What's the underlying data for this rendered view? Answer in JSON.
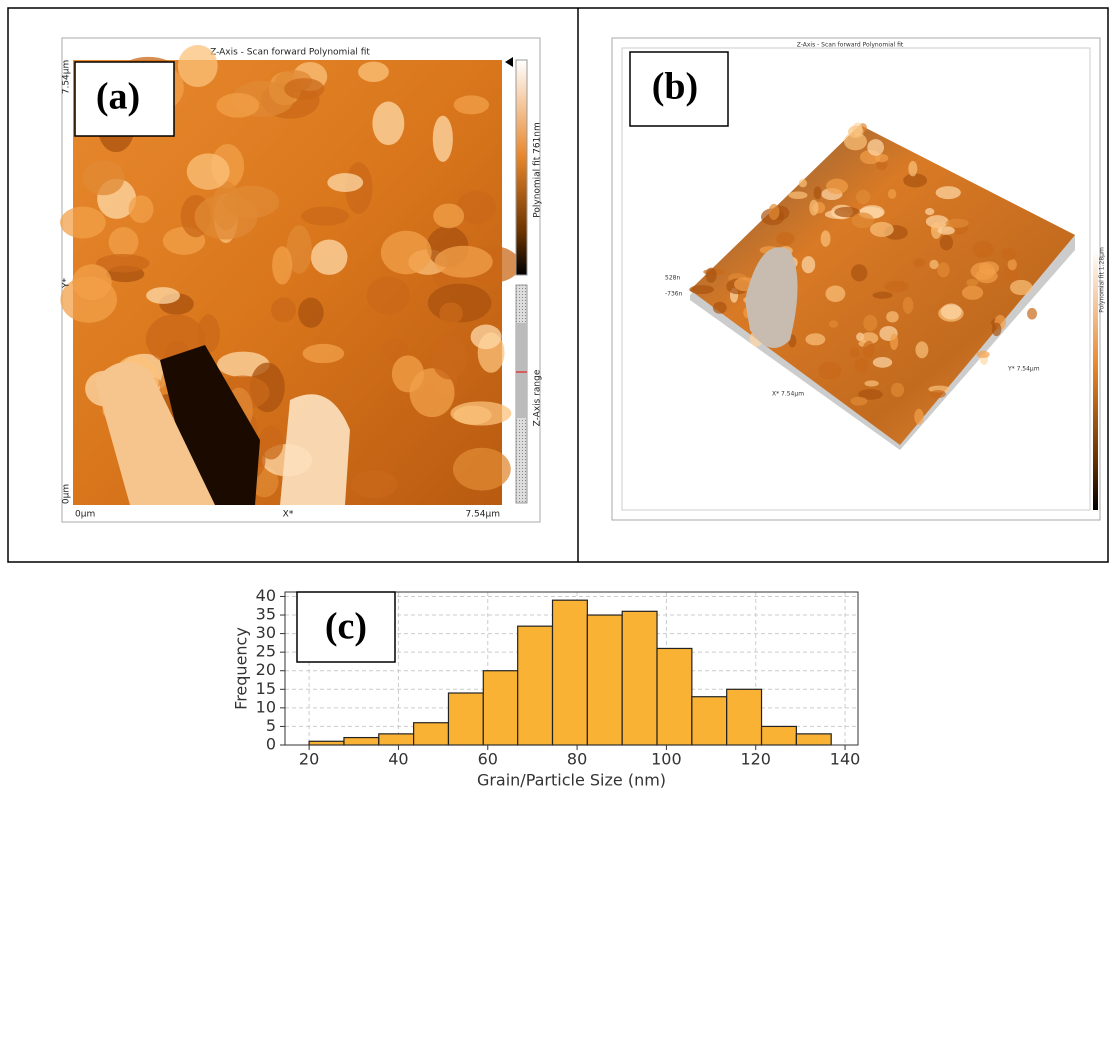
{
  "panel_a": {
    "label": "(a)",
    "title": "Z-Axis - Scan forward   Polynomial fit",
    "y_top": "7.54µm",
    "y_name": "Y*",
    "y_bottom": "0µm",
    "x_left": "0µm",
    "x_name": "X*",
    "x_right": "7.54µm",
    "colorbar_label": "Polynomial fit 761nm",
    "range_label": "Z-Axis range"
  },
  "panel_b": {
    "label": "(b)",
    "title": "Z-Axis - Scan forward  Polynomial fit",
    "z_top": "528n",
    "z_bottom": "-736n",
    "x_axis": "X* 7.54µm",
    "y_axis": "Y* 7.54µm",
    "colorbar_label": "Polynomial fit 1.28µm"
  },
  "chart_data": {
    "type": "histogram",
    "label": "(c)",
    "x_label": "Grain/Particle Size (nm)",
    "y_label": "Frequency",
    "bins": [
      20,
      27.8,
      35.6,
      43.4,
      51.2,
      59.0,
      66.7,
      74.5,
      82.3,
      90.1,
      97.9,
      105.7,
      113.5,
      121.3,
      129.1,
      136.9
    ],
    "values": [
      1,
      2,
      3,
      6,
      14,
      20,
      32,
      39,
      35,
      36,
      26,
      13,
      15,
      5,
      3
    ],
    "color": "#f9b233",
    "edgecolor": "#222222",
    "xlim": [
      14.6,
      142.9
    ],
    "ylim": [
      0,
      41.2
    ],
    "xticks": [
      20,
      40,
      60,
      80,
      100,
      120,
      140
    ],
    "yticks": [
      0,
      5,
      10,
      15,
      20,
      25,
      30,
      35,
      40
    ],
    "grid": true
  }
}
